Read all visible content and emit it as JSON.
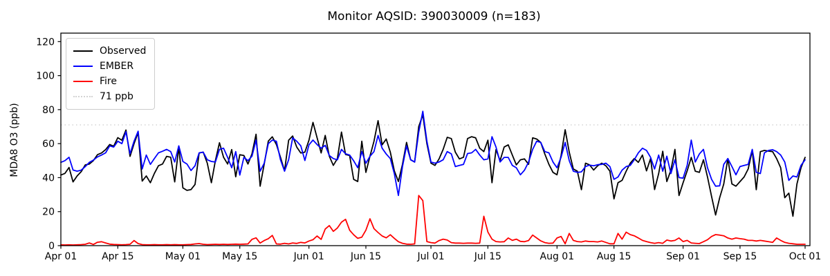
{
  "chart_data": {
    "type": "line",
    "title": "Monitor AQSID: 390030009 (n=183)",
    "xlabel": "",
    "ylabel": "MDA8 O3 (ppb)",
    "ylim": [
      0,
      125
    ],
    "grid": false,
    "legend_position": "upper-left",
    "x_unit": "days since Apr 01",
    "x_ticks": [
      {
        "day": 0,
        "label": "Apr 01"
      },
      {
        "day": 14,
        "label": "Apr 15"
      },
      {
        "day": 30,
        "label": "May 01"
      },
      {
        "day": 44,
        "label": "May 15"
      },
      {
        "day": 61,
        "label": "Jun 01"
      },
      {
        "day": 75,
        "label": "Jun 15"
      },
      {
        "day": 91,
        "label": "Jul 01"
      },
      {
        "day": 105,
        "label": "Jul 15"
      },
      {
        "day": 122,
        "label": "Aug 01"
      },
      {
        "day": 136,
        "label": "Aug 15"
      },
      {
        "day": 153,
        "label": "Sep 01"
      },
      {
        "day": 167,
        "label": "Sep 15"
      },
      {
        "day": 183,
        "label": "Oct 01"
      }
    ],
    "y_ticks": [
      0,
      20,
      40,
      60,
      80,
      100,
      120
    ],
    "threshold": {
      "value": 71,
      "label": "71 ppb",
      "color": "#d3d3d3",
      "linestyle": "dotted"
    },
    "series": [
      {
        "name": "Observed",
        "color": "#000000",
        "values": [
          41.5,
          42.5,
          46,
          37.5,
          41,
          43.5,
          47.5,
          48,
          50,
          53.5,
          54.5,
          56.5,
          59.5,
          58.5,
          63.5,
          62,
          68,
          52.5,
          60,
          66.5,
          38,
          41,
          37,
          42.5,
          47,
          48,
          52.5,
          52,
          37.5,
          58,
          34,
          32.5,
          33,
          36,
          54.5,
          55,
          48.5,
          37,
          50,
          60.5,
          52,
          48,
          56.5,
          40.5,
          53.5,
          53,
          48,
          54,
          65.5,
          35,
          48,
          61.5,
          64,
          59.5,
          52,
          44,
          62,
          64.5,
          58,
          54.5,
          55,
          62,
          72.5,
          63.5,
          54.5,
          64.8,
          52.6,
          47.2,
          51.2,
          66.8,
          53.6,
          53,
          39,
          37.7,
          61.4,
          43.1,
          52.6,
          61.4,
          73.5,
          59.3,
          62.7,
          55,
          44,
          37.7,
          47.8,
          60.7,
          50.5,
          49.2,
          70,
          77,
          60,
          48.5,
          47.2,
          51,
          56.6,
          63.7,
          63,
          55,
          51,
          52,
          63,
          64.1,
          63.4,
          57.3,
          55.3,
          62,
          37,
          56.5,
          50,
          58,
          59.3,
          53.3,
          47.5,
          50.5,
          51,
          47.8,
          63.4,
          62.7,
          60.7,
          53.9,
          47.8,
          43.1,
          41.7,
          53,
          68.2,
          55,
          45.1,
          43.8,
          32.9,
          48.5,
          47.5,
          44.5,
          47,
          48.5,
          47,
          43.8,
          27.5,
          37,
          38.4,
          43.8,
          48.5,
          51.2,
          49,
          53.3,
          44,
          51.2,
          33,
          42.4,
          55.5,
          37.7,
          44.4,
          56.6,
          29.5,
          37,
          44,
          51.9,
          43.8,
          43.1,
          50.5,
          40.4,
          28.9,
          18,
          28.2,
          36.3,
          51.2,
          36.3,
          35,
          37.7,
          40.4,
          45.1,
          56,
          32.9,
          55.3,
          56,
          55.6,
          55.3,
          51.2,
          45.8,
          28.2,
          30.9,
          17.3,
          36.3,
          45.8,
          51.9
        ]
      },
      {
        "name": "EMBER",
        "color": "#0000ff",
        "values": [
          49,
          50,
          52,
          44.5,
          43.8,
          44.4,
          46.5,
          49,
          50.3,
          52.2,
          53.3,
          54.6,
          58.7,
          58,
          61.4,
          60,
          67,
          54,
          61.4,
          67.3,
          45.1,
          53.3,
          47.8,
          51.2,
          54.6,
          55.5,
          56.6,
          55.3,
          49.2,
          58.7,
          49.5,
          48,
          44.2,
          47,
          54.6,
          55,
          50.5,
          49.5,
          49.2,
          56.6,
          57.3,
          51.9,
          45.8,
          55.3,
          41.5,
          51.9,
          50,
          52.6,
          62.1,
          43.8,
          48.5,
          60,
          62.1,
          61.4,
          50.5,
          43.8,
          50.5,
          63.4,
          61.4,
          58.7,
          50.1,
          59.3,
          62.1,
          59.5,
          57.3,
          59,
          53,
          51.2,
          50.5,
          56.6,
          54,
          53.3,
          49.9,
          45.8,
          55.3,
          48.5,
          52.5,
          55.3,
          64.8,
          57.3,
          53.9,
          51.2,
          42.4,
          29.5,
          46.5,
          58.7,
          50.5,
          49.2,
          66.8,
          79,
          61.4,
          49.2,
          48.5,
          49.2,
          50.5,
          55.3,
          54,
          46.5,
          47.2,
          47.8,
          54.2,
          54.6,
          56.6,
          53.3,
          50.5,
          51,
          64.1,
          58,
          49.2,
          51.9,
          51.9,
          47.2,
          45.8,
          41.7,
          44.4,
          49.2,
          56.6,
          61.4,
          60.7,
          55.3,
          54.6,
          49.2,
          45.8,
          52,
          60.7,
          50,
          43.8,
          43.1,
          43.4,
          46.5,
          47.4,
          47,
          47.6,
          47.8,
          48.5,
          46.5,
          39,
          40.4,
          44.4,
          46.5,
          47.2,
          50.5,
          54.6,
          57.3,
          56,
          51.9,
          45.1,
          53.3,
          43.8,
          52.6,
          42.4,
          50.5,
          40,
          39.7,
          47.2,
          62.1,
          49.2,
          53.9,
          56.6,
          45.8,
          39,
          35,
          35.2,
          47.8,
          51.2,
          46.5,
          41.7,
          46.5,
          47.2,
          47.8,
          56.6,
          43.1,
          42.4,
          54.6,
          56,
          56.4,
          55.3,
          53.3,
          49.2,
          38.4,
          41,
          40.4,
          47.2,
          50.5
        ]
      },
      {
        "name": "Fire",
        "color": "#ff0000",
        "values": [
          0.5,
          0.4,
          0.5,
          0.4,
          0.5,
          0.6,
          0.8,
          1.6,
          0.7,
          2.0,
          2.3,
          1.6,
          0.9,
          0.7,
          0.6,
          0.5,
          0.6,
          0.8,
          3.0,
          1.2,
          0.6,
          0.5,
          0.5,
          0.6,
          0.5,
          0.5,
          0.6,
          0.5,
          0.6,
          0.5,
          0.5,
          0.6,
          0.7,
          1.0,
          1.2,
          0.8,
          0.6,
          0.7,
          0.8,
          0.7,
          0.8,
          0.7,
          0.8,
          0.9,
          0.8,
          0.9,
          1.0,
          3.7,
          4.6,
          1.5,
          3.0,
          4.1,
          6.0,
          1.0,
          0.9,
          1.4,
          1.0,
          1.6,
          1.3,
          1.9,
          1.6,
          2.7,
          3.5,
          5.7,
          3.7,
          9.8,
          11.8,
          8.4,
          10.4,
          13.8,
          15.5,
          9.1,
          6.4,
          4.3,
          5.0,
          9.1,
          15.8,
          10,
          7.7,
          5.7,
          4.6,
          6.4,
          4.3,
          2.3,
          1.4,
          0.9,
          0.8,
          1.0,
          29.5,
          26.5,
          2.4,
          1.8,
          1.5,
          3.0,
          3.8,
          3.3,
          1.8,
          1.5,
          1.5,
          1.4,
          1.5,
          1.5,
          1.4,
          1.5,
          17.3,
          8,
          3.8,
          2.4,
          2.2,
          2.3,
          4.5,
          3.1,
          3.8,
          2.5,
          2.3,
          3.0,
          6.2,
          4.5,
          2.8,
          1.8,
          1.4,
          1.5,
          4.5,
          5.4,
          1.1,
          7.2,
          3.1,
          2.4,
          2.2,
          2.7,
          2.4,
          2.4,
          2.2,
          2.7,
          1.9,
          1.1,
          1.1,
          7.2,
          3.8,
          7.9,
          6.5,
          5.8,
          4.5,
          3.1,
          2.4,
          1.8,
          1.4,
          1.8,
          1.4,
          3.3,
          2.7,
          3.1,
          4.5,
          2.4,
          3.1,
          1.6,
          1.4,
          1.2,
          2.3,
          3.5,
          5.4,
          6.5,
          6.2,
          5.8,
          4.5,
          3.8,
          4.5,
          4.1,
          3.8,
          3.1,
          3.1,
          2.7,
          3.1,
          2.7,
          2.3,
          1.9,
          4.5,
          3.1,
          1.9,
          1.4,
          1.1,
          0.8,
          0.8,
          0.8
        ]
      }
    ]
  },
  "style": {
    "spine_color": "#000000",
    "background": "#ffffff",
    "legend_border": "#cccccc"
  }
}
